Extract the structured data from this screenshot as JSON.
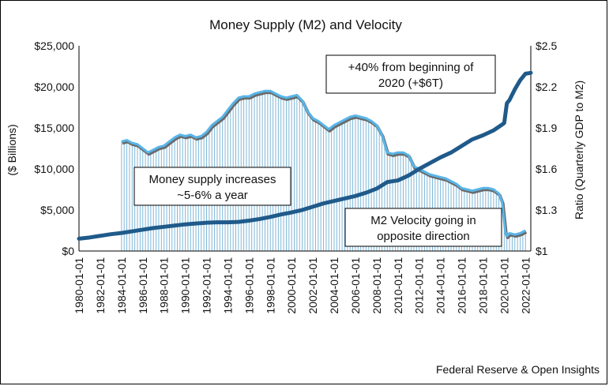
{
  "chart_data": {
    "type": "bar+line",
    "title": "Money Supply (M2) and Velocity",
    "source": "Federal Reserve & Open Insights",
    "y_left": {
      "label": "($ Billions)",
      "ylim": [
        0,
        25000
      ],
      "ticks": [
        "$0",
        "$5,000",
        "$10,000",
        "$15,000",
        "$20,000",
        "$25,000"
      ]
    },
    "y_right": {
      "label": "Ratio (Quarterly GDP to M2)",
      "ylim": [
        1,
        2.5
      ],
      "ticks": [
        "$1",
        "$1.3",
        "$1.6",
        "$1.9",
        "$2.2",
        "$2.5"
      ]
    },
    "x_ticks": [
      "1980-01-01",
      "1982-01-01",
      "1984-01-01",
      "1986-01-01",
      "1988-01-01",
      "1990-01-01",
      "1992-01-01",
      "1994-01-01",
      "1996-01-01",
      "1998-01-01",
      "2000-01-01",
      "2002-01-01",
      "2004-01-01",
      "2006-01-01",
      "2008-01-01",
      "2010-01-01",
      "2012-01-01",
      "2014-01-01",
      "2016-01-01",
      "2018-01-01",
      "2020-01-01",
      "2022-01-01"
    ],
    "x_range": [
      1980.0,
      2022.5
    ],
    "m2_supply_billions": [
      [
        1980.0,
        1500
      ],
      [
        1981.0,
        1650
      ],
      [
        1982.0,
        1850
      ],
      [
        1983.0,
        2050
      ],
      [
        1984.0,
        2200
      ],
      [
        1985.0,
        2400
      ],
      [
        1986.0,
        2600
      ],
      [
        1987.0,
        2800
      ],
      [
        1988.0,
        2950
      ],
      [
        1989.0,
        3100
      ],
      [
        1990.0,
        3250
      ],
      [
        1991.0,
        3350
      ],
      [
        1992.0,
        3450
      ],
      [
        1993.0,
        3500
      ],
      [
        1994.0,
        3500
      ],
      [
        1995.0,
        3550
      ],
      [
        1996.0,
        3700
      ],
      [
        1997.0,
        3900
      ],
      [
        1998.0,
        4150
      ],
      [
        1999.0,
        4450
      ],
      [
        2000.0,
        4700
      ],
      [
        2001.0,
        5000
      ],
      [
        2002.0,
        5400
      ],
      [
        2003.0,
        5800
      ],
      [
        2004.0,
        6100
      ],
      [
        2005.0,
        6400
      ],
      [
        2006.0,
        6700
      ],
      [
        2007.0,
        7100
      ],
      [
        2008.0,
        7600
      ],
      [
        2009.0,
        8400
      ],
      [
        2010.0,
        8600
      ],
      [
        2011.0,
        9200
      ],
      [
        2012.0,
        10000
      ],
      [
        2013.0,
        10700
      ],
      [
        2014.0,
        11400
      ],
      [
        2015.0,
        12000
      ],
      [
        2016.0,
        12800
      ],
      [
        2017.0,
        13600
      ],
      [
        2018.0,
        14100
      ],
      [
        2019.0,
        14700
      ],
      [
        2019.8,
        15400
      ],
      [
        2020.0,
        15600
      ],
      [
        2020.25,
        18000
      ],
      [
        2020.5,
        18400
      ],
      [
        2021.0,
        19700
      ],
      [
        2021.5,
        20800
      ],
      [
        2022.0,
        21600
      ],
      [
        2022.5,
        21700
      ]
    ],
    "m2_velocity_ratio": [
      [
        1984.0,
        1.8
      ],
      [
        1984.5,
        1.81
      ],
      [
        1985.0,
        1.79
      ],
      [
        1985.5,
        1.78
      ],
      [
        1986.0,
        1.75
      ],
      [
        1986.5,
        1.72
      ],
      [
        1987.0,
        1.74
      ],
      [
        1987.5,
        1.76
      ],
      [
        1988.0,
        1.77
      ],
      [
        1988.5,
        1.8
      ],
      [
        1989.0,
        1.83
      ],
      [
        1989.5,
        1.85
      ],
      [
        1990.0,
        1.84
      ],
      [
        1990.5,
        1.85
      ],
      [
        1991.0,
        1.83
      ],
      [
        1991.5,
        1.84
      ],
      [
        1992.0,
        1.87
      ],
      [
        1992.5,
        1.92
      ],
      [
        1993.0,
        1.95
      ],
      [
        1993.5,
        1.98
      ],
      [
        1994.0,
        2.03
      ],
      [
        1994.5,
        2.08
      ],
      [
        1995.0,
        2.12
      ],
      [
        1995.5,
        2.13
      ],
      [
        1996.0,
        2.13
      ],
      [
        1996.5,
        2.15
      ],
      [
        1997.0,
        2.16
      ],
      [
        1997.5,
        2.17
      ],
      [
        1998.0,
        2.17
      ],
      [
        1998.5,
        2.15
      ],
      [
        1999.0,
        2.13
      ],
      [
        1999.5,
        2.12
      ],
      [
        2000.0,
        2.13
      ],
      [
        2000.5,
        2.14
      ],
      [
        2001.0,
        2.1
      ],
      [
        2001.5,
        2.02
      ],
      [
        2002.0,
        1.97
      ],
      [
        2002.5,
        1.95
      ],
      [
        2003.0,
        1.92
      ],
      [
        2003.5,
        1.89
      ],
      [
        2004.0,
        1.92
      ],
      [
        2004.5,
        1.94
      ],
      [
        2005.0,
        1.96
      ],
      [
        2005.5,
        1.98
      ],
      [
        2006.0,
        1.99
      ],
      [
        2006.5,
        1.98
      ],
      [
        2007.0,
        1.97
      ],
      [
        2007.5,
        1.95
      ],
      [
        2008.0,
        1.92
      ],
      [
        2008.5,
        1.85
      ],
      [
        2009.0,
        1.72
      ],
      [
        2009.5,
        1.71
      ],
      [
        2010.0,
        1.72
      ],
      [
        2010.5,
        1.72
      ],
      [
        2011.0,
        1.7
      ],
      [
        2011.5,
        1.62
      ],
      [
        2012.0,
        1.6
      ],
      [
        2012.5,
        1.58
      ],
      [
        2013.0,
        1.56
      ],
      [
        2013.5,
        1.55
      ],
      [
        2014.0,
        1.54
      ],
      [
        2014.5,
        1.53
      ],
      [
        2015.0,
        1.51
      ],
      [
        2015.5,
        1.49
      ],
      [
        2016.0,
        1.46
      ],
      [
        2016.5,
        1.45
      ],
      [
        2017.0,
        1.44
      ],
      [
        2017.5,
        1.45
      ],
      [
        2018.0,
        1.46
      ],
      [
        2018.5,
        1.46
      ],
      [
        2019.0,
        1.45
      ],
      [
        2019.5,
        1.42
      ],
      [
        2019.8,
        1.36
      ],
      [
        2020.1,
        1.14
      ],
      [
        2020.25,
        1.11
      ],
      [
        2020.5,
        1.13
      ],
      [
        2021.0,
        1.12
      ],
      [
        2021.5,
        1.13
      ],
      [
        2022.0,
        1.15
      ]
    ],
    "annotations": {
      "supply_growth": "Money supply increases ~5-6% a year",
      "supply_growth_lines": [
        "Money supply increases",
        "~5-6% a year"
      ],
      "velocity": "M2 Velocity going in opposite direction",
      "velocity_lines": [
        "M2 Velocity going in",
        "opposite direction"
      ],
      "covid": "+40% from beginning of 2020 (+$6T)",
      "covid_lines": [
        "+40% from beginning of",
        "2020 (+$6T)"
      ]
    },
    "colors": {
      "supply_line": "#1f5a8a",
      "velocity_line": "#58b5e8",
      "velocity_bars": "#7fb8d8",
      "axes": "#000000"
    },
    "grid": false,
    "legend": "none"
  }
}
